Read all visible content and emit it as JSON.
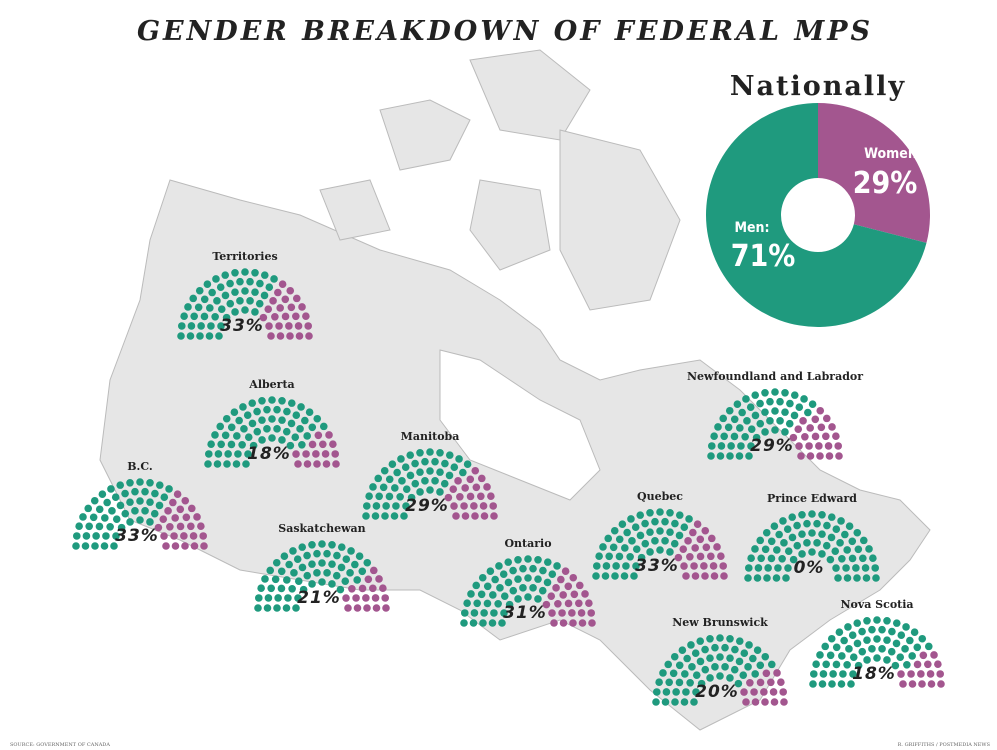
{
  "title": "GENDER BREAKDOWN OF FEDERAL MPS",
  "national": {
    "heading": "Nationally",
    "women": {
      "name": "Women:",
      "value": 29,
      "label": "29%"
    },
    "men": {
      "name": "Men:",
      "value": 71,
      "label": "71%"
    }
  },
  "regions": [
    {
      "name": "Territories",
      "women": {
        "value": 33,
        "label": "33%"
      }
    },
    {
      "name": "Alberta",
      "women": {
        "value": 18,
        "label": "18%"
      }
    },
    {
      "name": "B.C.",
      "women": {
        "value": 33,
        "label": "33%"
      }
    },
    {
      "name": "Manitoba",
      "women": {
        "value": 29,
        "label": "29%"
      }
    },
    {
      "name": "Saskatchewan",
      "women": {
        "value": 21,
        "label": "21%"
      }
    },
    {
      "name": "Ontario",
      "women": {
        "value": 31,
        "label": "31%"
      }
    },
    {
      "name": "Quebec",
      "women": {
        "value": 33,
        "label": "33%"
      }
    },
    {
      "name": "Newfoundland and Labrador",
      "women": {
        "value": 29,
        "label": "29%"
      }
    },
    {
      "name": "Prince Edward",
      "women": {
        "value": 0,
        "label": "0%"
      }
    },
    {
      "name": "New Brunswick",
      "women": {
        "value": 20,
        "label": "20%"
      }
    },
    {
      "name": "Nova Scotia",
      "women": {
        "value": 18,
        "label": "18%"
      }
    }
  ],
  "source": "SOURCE: GOVERNMENT OF CANADA",
  "credit": "R. GRIFFITHS / POSTMEDIA NEWS",
  "colors": {
    "men": "#1f9a7e",
    "women": "#a3568f"
  }
}
